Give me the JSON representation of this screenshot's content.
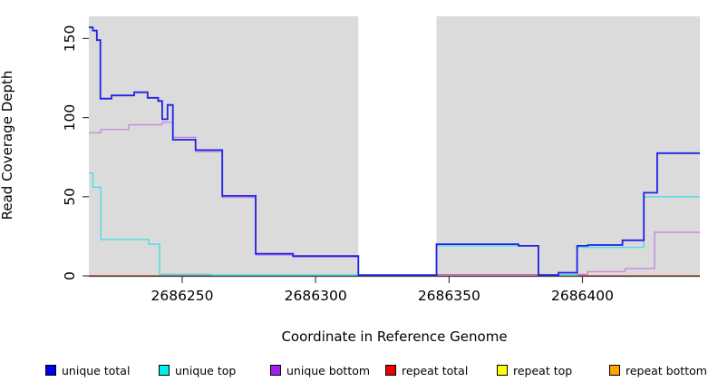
{
  "chart_data": {
    "type": "line",
    "step": true,
    "title": "",
    "xlabel": "Coordinate in Reference Genome",
    "ylabel": "Read Coverage Depth",
    "xlim": [
      2686215,
      2686444
    ],
    "ylim": [
      0,
      164
    ],
    "x_ticks": [
      2686250,
      2686300,
      2686350,
      2686400
    ],
    "y_ticks": [
      0,
      50,
      100,
      150
    ],
    "grid": false,
    "plot_bg_color": "#DBDBDB",
    "axis_color": "#404040",
    "gap_region": [
      2686316,
      2686345.3
    ],
    "series": [
      {
        "name": "repeat top",
        "color": "#FFFF00",
        "width": 1.2,
        "points": [
          [
            2686215,
            0
          ]
        ]
      },
      {
        "name": "repeat bottom",
        "color": "#FFA500",
        "width": 1.6,
        "points": [
          [
            2686215,
            0
          ]
        ]
      },
      {
        "name": "repeat total",
        "color": "#D84055",
        "width": 1.4,
        "points": [
          [
            2686215,
            0
          ],
          [
            2686345.3,
            0.6
          ],
          [
            2686401,
            0
          ]
        ]
      },
      {
        "name": "unique bottom",
        "color": "#C07EE0",
        "width": 1.2,
        "points": [
          [
            2686215,
            90.5
          ],
          [
            2686219.5,
            92.5
          ],
          [
            2686230,
            95.5
          ],
          [
            2686242.5,
            97
          ],
          [
            2686246.5,
            87.5
          ],
          [
            2686255,
            78.5
          ],
          [
            2686265,
            49.5
          ],
          [
            2686277.5,
            13.2
          ],
          [
            2686291.5,
            12
          ],
          [
            2686316,
            0.4
          ],
          [
            2686345.3,
            0.3
          ],
          [
            2686391,
            2
          ],
          [
            2686398,
            1
          ],
          [
            2686402,
            2.7
          ],
          [
            2686416,
            4.6
          ],
          [
            2686427,
            27.5
          ]
        ]
      },
      {
        "name": "unique top",
        "color": "#45E0E8",
        "width": 1.4,
        "points": [
          [
            2686215,
            65
          ],
          [
            2686216.5,
            56
          ],
          [
            2686219.5,
            23
          ],
          [
            2686237.5,
            20
          ],
          [
            2686241.5,
            1
          ],
          [
            2686261,
            0.6
          ],
          [
            2686316,
            0
          ],
          [
            2686345.3,
            19
          ],
          [
            2686383.5,
            0.6
          ],
          [
            2686398,
            18
          ],
          [
            2686423,
            50
          ]
        ]
      },
      {
        "name": "unique total",
        "color": "#2020E8",
        "width": 1.8,
        "points": [
          [
            2686215,
            157
          ],
          [
            2686216.5,
            155
          ],
          [
            2686218,
            149
          ],
          [
            2686219.3,
            112
          ],
          [
            2686223.5,
            114
          ],
          [
            2686232,
            116
          ],
          [
            2686237,
            112.5
          ],
          [
            2686241,
            110.5
          ],
          [
            2686242.5,
            99
          ],
          [
            2686244.5,
            108
          ],
          [
            2686246.5,
            86
          ],
          [
            2686255,
            79.5
          ],
          [
            2686265,
            50.5
          ],
          [
            2686277.5,
            14
          ],
          [
            2686291.5,
            12.5
          ],
          [
            2686316,
            0.5
          ],
          [
            2686345.3,
            20
          ],
          [
            2686376,
            19
          ],
          [
            2686383.5,
            0.5
          ],
          [
            2686391,
            2
          ],
          [
            2686398,
            19
          ],
          [
            2686402,
            19.5
          ],
          [
            2686415,
            22.5
          ],
          [
            2686423,
            52.5
          ],
          [
            2686428,
            77.5
          ]
        ]
      }
    ],
    "legend": [
      {
        "label": "unique total",
        "color": "#0000EE"
      },
      {
        "label": "unique top",
        "color": "#00EEEE"
      },
      {
        "label": "unique bottom",
        "color": "#A020F0"
      },
      {
        "label": "repeat total",
        "color": "#EE0000"
      },
      {
        "label": "repeat top",
        "color": "#FFFF00"
      },
      {
        "label": "repeat bottom",
        "color": "#FFA500"
      }
    ],
    "legend_position": "bottom"
  }
}
